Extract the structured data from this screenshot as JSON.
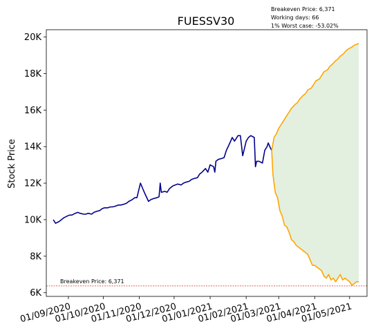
{
  "chart_data": {
    "type": "line",
    "title": "FUESSV30",
    "xlabel": "",
    "ylabel": "Stock Price",
    "x_range": [
      "2020-08-13",
      "2021-05-16"
    ],
    "y_range": [
      5800,
      20400
    ],
    "grid": false,
    "y_ticks": [
      {
        "value": 6000,
        "label": "6K"
      },
      {
        "value": 8000,
        "label": "8K"
      },
      {
        "value": 10000,
        "label": "10K"
      },
      {
        "value": 12000,
        "label": "12K"
      },
      {
        "value": 14000,
        "label": "14K"
      },
      {
        "value": 16000,
        "label": "16K"
      },
      {
        "value": 18000,
        "label": "18K"
      },
      {
        "value": 20000,
        "label": "20K"
      }
    ],
    "x_ticks": [
      {
        "value": "2020-09-01",
        "label": "01/09/2020"
      },
      {
        "value": "2020-10-01",
        "label": "01/10/2020"
      },
      {
        "value": "2020-11-01",
        "label": "01/11/2020"
      },
      {
        "value": "2020-12-01",
        "label": "01/12/2020"
      },
      {
        "value": "2021-01-01",
        "label": "01/01/2021"
      },
      {
        "value": "2021-02-01",
        "label": "01/02/2021"
      },
      {
        "value": "2021-03-01",
        "label": "01/03/2021"
      },
      {
        "value": "2021-04-01",
        "label": "01/04/2021"
      },
      {
        "value": "2021-05-01",
        "label": "01/05/2021"
      }
    ],
    "annotations": {
      "info_lines": [
        "Breakeven Price: 6,371",
        "Working days: 66",
        "1% Worst case: -53.02%"
      ],
      "breakeven_label": "Breakeven Price: 6,371"
    },
    "breakeven": 6371,
    "colors": {
      "history": "#00008b",
      "forecast": "#ffa500",
      "band_fill": "#e3f0e0",
      "breakeven_line": "#d62728"
    },
    "series": [
      {
        "points": [
          [
            "2020-08-19",
            10000
          ],
          [
            "2020-08-21",
            9800
          ],
          [
            "2020-08-24",
            9900
          ],
          [
            "2020-08-26",
            10000
          ],
          [
            "2020-08-28",
            10100
          ],
          [
            "2020-08-31",
            10200
          ],
          [
            "2020-09-02",
            10250
          ],
          [
            "2020-09-04",
            10250
          ],
          [
            "2020-09-07",
            10350
          ],
          [
            "2020-09-09",
            10400
          ],
          [
            "2020-09-11",
            10350
          ],
          [
            "2020-09-14",
            10300
          ],
          [
            "2020-09-16",
            10300
          ],
          [
            "2020-09-18",
            10350
          ],
          [
            "2020-09-21",
            10300
          ],
          [
            "2020-09-23",
            10400
          ],
          [
            "2020-09-25",
            10450
          ],
          [
            "2020-09-28",
            10500
          ],
          [
            "2020-09-30",
            10600
          ],
          [
            "2020-10-02",
            10650
          ],
          [
            "2020-10-05",
            10650
          ],
          [
            "2020-10-07",
            10700
          ],
          [
            "2020-10-09",
            10700
          ],
          [
            "2020-10-12",
            10750
          ],
          [
            "2020-10-14",
            10800
          ],
          [
            "2020-10-16",
            10800
          ],
          [
            "2020-10-19",
            10850
          ],
          [
            "2020-10-21",
            10900
          ],
          [
            "2020-10-23",
            11000
          ],
          [
            "2020-10-26",
            11100
          ],
          [
            "2020-10-28",
            11200
          ],
          [
            "2020-10-30",
            11200
          ],
          [
            "2020-11-02",
            12000
          ],
          [
            "2020-11-04",
            11700
          ],
          [
            "2020-11-06",
            11400
          ],
          [
            "2020-11-09",
            11000
          ],
          [
            "2020-11-11",
            11100
          ],
          [
            "2020-11-13",
            11150
          ],
          [
            "2020-11-16",
            11200
          ],
          [
            "2020-11-18",
            11250
          ],
          [
            "2020-11-19",
            12000
          ],
          [
            "2020-11-20",
            11500
          ],
          [
            "2020-11-23",
            11550
          ],
          [
            "2020-11-25",
            11500
          ],
          [
            "2020-11-27",
            11700
          ],
          [
            "2020-11-30",
            11850
          ],
          [
            "2020-12-02",
            11900
          ],
          [
            "2020-12-04",
            11950
          ],
          [
            "2020-12-07",
            11900
          ],
          [
            "2020-12-09",
            12000
          ],
          [
            "2020-12-11",
            12050
          ],
          [
            "2020-12-14",
            12100
          ],
          [
            "2020-12-16",
            12200
          ],
          [
            "2020-12-18",
            12250
          ],
          [
            "2020-12-21",
            12300
          ],
          [
            "2020-12-23",
            12500
          ],
          [
            "2020-12-25",
            12600
          ],
          [
            "2020-12-28",
            12800
          ],
          [
            "2020-12-30",
            12600
          ],
          [
            "2021-01-01",
            13000
          ],
          [
            "2021-01-04",
            12900
          ],
          [
            "2021-01-05",
            12600
          ],
          [
            "2021-01-06",
            13200
          ],
          [
            "2021-01-08",
            13300
          ],
          [
            "2021-01-11",
            13350
          ],
          [
            "2021-01-13",
            13400
          ],
          [
            "2021-01-15",
            13800
          ],
          [
            "2021-01-18",
            14200
          ],
          [
            "2021-01-20",
            14500
          ],
          [
            "2021-01-22",
            14300
          ],
          [
            "2021-01-25",
            14600
          ],
          [
            "2021-01-27",
            14600
          ],
          [
            "2021-01-29",
            13500
          ],
          [
            "2021-02-01",
            14300
          ],
          [
            "2021-02-03",
            14500
          ],
          [
            "2021-02-05",
            14600
          ],
          [
            "2021-02-08",
            14500
          ],
          [
            "2021-02-09",
            12900
          ],
          [
            "2021-02-10",
            13200
          ],
          [
            "2021-02-12",
            13200
          ],
          [
            "2021-02-15",
            13100
          ],
          [
            "2021-02-17",
            13800
          ],
          [
            "2021-02-19",
            14000
          ],
          [
            "2021-02-20",
            14200
          ],
          [
            "2021-02-22",
            13900
          ],
          [
            "2021-02-23",
            13800
          ]
        ]
      },
      {
        "points": [
          [
            "2021-02-23",
            13800
          ],
          [
            "2021-02-25",
            14500
          ],
          [
            "2021-02-27",
            14700
          ],
          [
            "2021-03-01",
            15000
          ],
          [
            "2021-03-03",
            15200
          ],
          [
            "2021-03-05",
            15400
          ],
          [
            "2021-03-08",
            15700
          ],
          [
            "2021-03-10",
            15900
          ],
          [
            "2021-03-12",
            16100
          ],
          [
            "2021-03-15",
            16300
          ],
          [
            "2021-03-17",
            16400
          ],
          [
            "2021-03-19",
            16600
          ],
          [
            "2021-03-22",
            16800
          ],
          [
            "2021-03-24",
            16900
          ],
          [
            "2021-03-26",
            17100
          ],
          [
            "2021-03-29",
            17200
          ],
          [
            "2021-03-31",
            17400
          ],
          [
            "2021-04-02",
            17600
          ],
          [
            "2021-04-05",
            17700
          ],
          [
            "2021-04-07",
            17900
          ],
          [
            "2021-04-09",
            18100
          ],
          [
            "2021-04-12",
            18200
          ],
          [
            "2021-04-14",
            18400
          ],
          [
            "2021-04-16",
            18500
          ],
          [
            "2021-04-19",
            18700
          ],
          [
            "2021-04-21",
            18800
          ],
          [
            "2021-04-23",
            18950
          ],
          [
            "2021-04-26",
            19100
          ],
          [
            "2021-04-28",
            19250
          ],
          [
            "2021-04-30",
            19350
          ],
          [
            "2021-05-03",
            19450
          ],
          [
            "2021-05-05",
            19550
          ],
          [
            "2021-05-07",
            19600
          ],
          [
            "2021-05-09",
            19650
          ]
        ]
      },
      {
        "points": [
          [
            "2021-02-23",
            13800
          ],
          [
            "2021-02-24",
            12500
          ],
          [
            "2021-02-26",
            11500
          ],
          [
            "2021-02-28",
            11200
          ],
          [
            "2021-03-02",
            10500
          ],
          [
            "2021-03-04",
            10200
          ],
          [
            "2021-03-06",
            9700
          ],
          [
            "2021-03-08",
            9600
          ],
          [
            "2021-03-10",
            9300
          ],
          [
            "2021-03-12",
            8900
          ],
          [
            "2021-03-14",
            8800
          ],
          [
            "2021-03-16",
            8600
          ],
          [
            "2021-03-18",
            8500
          ],
          [
            "2021-03-20",
            8400
          ],
          [
            "2021-03-22",
            8300
          ],
          [
            "2021-03-24",
            8200
          ],
          [
            "2021-03-26",
            8100
          ],
          [
            "2021-03-28",
            7800
          ],
          [
            "2021-03-30",
            7500
          ],
          [
            "2021-04-01",
            7500
          ],
          [
            "2021-04-03",
            7400
          ],
          [
            "2021-04-05",
            7300
          ],
          [
            "2021-04-07",
            7200
          ],
          [
            "2021-04-09",
            6900
          ],
          [
            "2021-04-11",
            6800
          ],
          [
            "2021-04-13",
            7000
          ],
          [
            "2021-04-15",
            6700
          ],
          [
            "2021-04-17",
            6800
          ],
          [
            "2021-04-19",
            6600
          ],
          [
            "2021-04-21",
            6800
          ],
          [
            "2021-04-23",
            7000
          ],
          [
            "2021-04-25",
            6700
          ],
          [
            "2021-04-27",
            6800
          ],
          [
            "2021-04-29",
            6700
          ],
          [
            "2021-05-01",
            6600
          ],
          [
            "2021-05-03",
            6400
          ],
          [
            "2021-05-05",
            6500
          ],
          [
            "2021-05-07",
            6600
          ],
          [
            "2021-05-09",
            6600
          ]
        ]
      }
    ]
  }
}
